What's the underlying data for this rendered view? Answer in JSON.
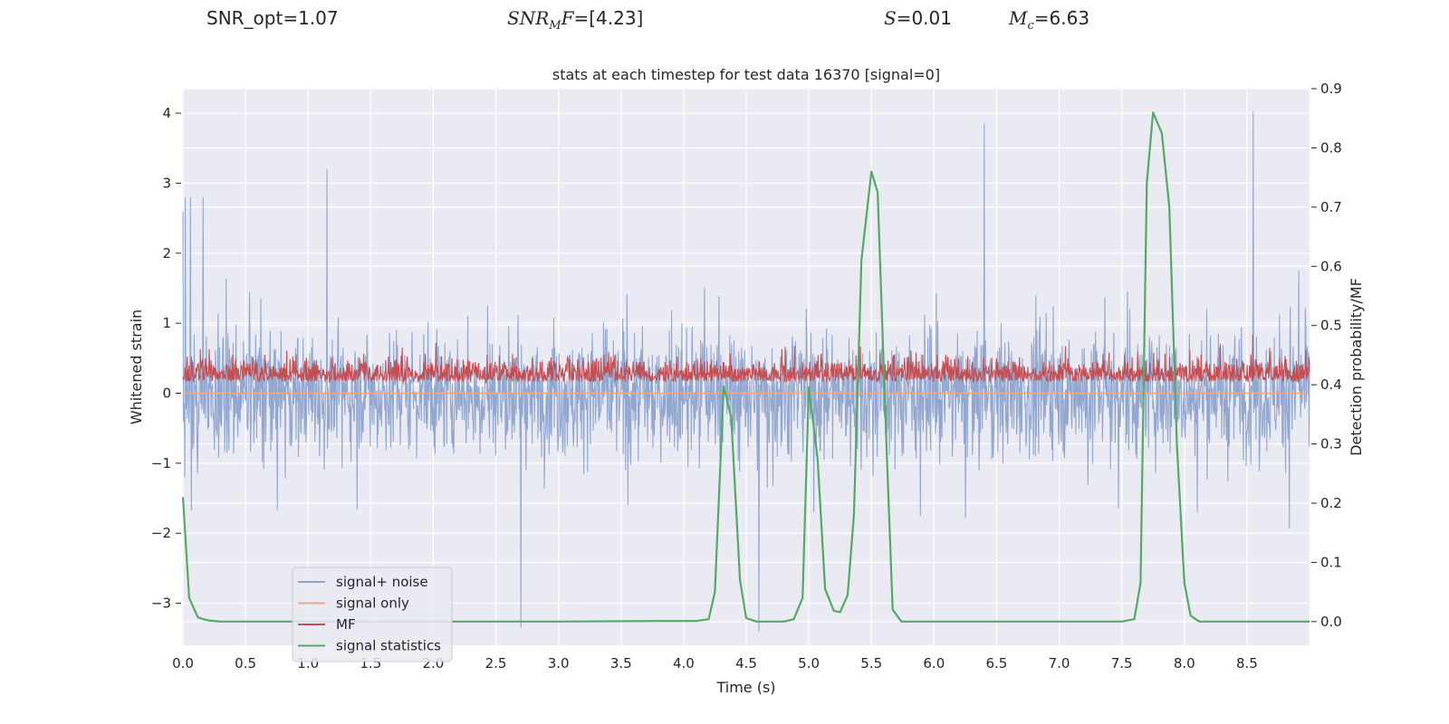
{
  "header": {
    "snr_opt": "SNR_opt=1.07",
    "snr_mf_base": "SNR",
    "snr_mf_sub": "M",
    "snr_mf_tail": "F",
    "snr_mf_value": "=[4.23]",
    "s_label": "S",
    "s_value": "=0.01",
    "mc_label": "M",
    "mc_sub": "c",
    "mc_value": "=6.63"
  },
  "chart_data": {
    "type": "line",
    "title": "stats at each timestep for test data 16370 [signal=0]",
    "xlabel": "Time (s)",
    "ylabel": "Whitened strain",
    "y2label": "Detection probability/MF",
    "xlim": [
      0,
      9.0
    ],
    "ylim": [
      -3.6,
      4.35
    ],
    "y2lim": [
      -0.04,
      0.9
    ],
    "xticks": [
      0.0,
      0.5,
      1.0,
      1.5,
      2.0,
      2.5,
      3.0,
      3.5,
      4.0,
      4.5,
      5.0,
      5.5,
      6.0,
      6.5,
      7.0,
      7.5,
      8.0,
      8.5
    ],
    "xtick_labels": [
      "0.0",
      "0.5",
      "1.0",
      "1.5",
      "2.0",
      "2.5",
      "3.0",
      "3.5",
      "4.0",
      "4.5",
      "5.0",
      "5.5",
      "6.0",
      "6.5",
      "7.0",
      "7.5",
      "8.0",
      "8.5"
    ],
    "yticks": [
      -3,
      -2,
      -1,
      0,
      1,
      2,
      3,
      4
    ],
    "ytick_labels": [
      "−3",
      "−2",
      "−1",
      "0",
      "1",
      "2",
      "3",
      "4"
    ],
    "y2ticks": [
      0.0,
      0.1,
      0.2,
      0.3,
      0.4,
      0.5,
      0.6,
      0.7,
      0.8,
      0.9
    ],
    "y2tick_labels": [
      "0.0",
      "0.1",
      "0.2",
      "0.3",
      "0.4",
      "0.5",
      "0.6",
      "0.7",
      "0.8",
      "0.9"
    ],
    "legend_position": "lower-left",
    "series": [
      {
        "name": "signal+ noise",
        "color": "#8da3cd",
        "axis": "left",
        "description": "dense noise trace, roughly spanning -3.3 to 4.0",
        "range": [
          -3.35,
          4.02
        ],
        "peaks": [
          [
            0.0,
            2.6
          ],
          [
            0.02,
            2.8
          ],
          [
            0.06,
            2.8
          ],
          [
            0.16,
            2.8
          ],
          [
            1.15,
            3.2
          ],
          [
            2.7,
            -3.35
          ],
          [
            6.4,
            3.85
          ],
          [
            8.55,
            4.02
          ],
          [
            4.6,
            -3.4
          ]
        ]
      },
      {
        "name": "signal only",
        "color": "#e8a88a",
        "axis": "left",
        "x": [
          0.0,
          9.0
        ],
        "y": [
          0.0,
          0.0
        ]
      },
      {
        "name": "MF",
        "color": "#c44e52",
        "axis": "right",
        "description": "matched filter output, fluctuating about 0.43 on the right axis",
        "range": [
          0.4,
          0.51
        ]
      },
      {
        "name": "signal statistics",
        "color": "#55a868",
        "axis": "right",
        "x": [
          0.0,
          0.05,
          0.12,
          0.2,
          0.3,
          0.5,
          1.0,
          2.0,
          3.0,
          3.8,
          4.1,
          4.2,
          4.25,
          4.32,
          4.38,
          4.45,
          4.5,
          4.58,
          4.8,
          4.88,
          4.95,
          5.0,
          5.07,
          5.13,
          5.2,
          5.25,
          5.31,
          5.36,
          5.42,
          5.5,
          5.55,
          5.62,
          5.67,
          5.74,
          5.8,
          6.0,
          7.0,
          7.5,
          7.6,
          7.65,
          7.7,
          7.75,
          7.82,
          7.88,
          7.94,
          8.0,
          8.05,
          8.12,
          8.2,
          9.0
        ],
        "y": [
          0.21,
          0.04,
          0.007,
          0.002,
          0.0,
          0.0,
          0.0,
          0.0,
          0.0,
          0.001,
          0.001,
          0.004,
          0.05,
          0.397,
          0.345,
          0.07,
          0.006,
          0.0,
          0.0,
          0.004,
          0.04,
          0.395,
          0.275,
          0.055,
          0.018,
          0.016,
          0.045,
          0.18,
          0.61,
          0.76,
          0.725,
          0.3,
          0.02,
          0.0,
          0.0,
          0.0,
          0.0,
          0.0,
          0.004,
          0.065,
          0.74,
          0.86,
          0.825,
          0.7,
          0.3,
          0.065,
          0.01,
          0.0,
          0.0,
          0.0
        ]
      }
    ]
  }
}
